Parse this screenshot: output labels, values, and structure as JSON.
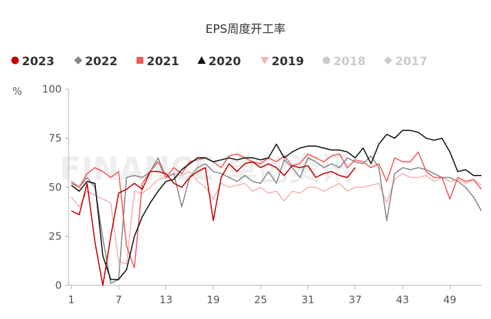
{
  "chart_data": {
    "type": "line",
    "title": "EPS周度开工率",
    "ylabel": "%",
    "ylim": [
      0,
      100
    ],
    "yticks": [
      "0",
      "25",
      "50",
      "75",
      "100"
    ],
    "xlim": [
      1,
      53
    ],
    "xticks": [
      "1",
      "7",
      "13",
      "19",
      "25",
      "31",
      "37",
      "43",
      "49"
    ],
    "grid": false,
    "legend_position": "top",
    "watermark": "FINANCE 卓创资讯",
    "series": [
      {
        "name": "2023",
        "color": "#c00000",
        "marker": "circle",
        "hidden": false,
        "x": [
          1,
          2,
          3,
          4,
          5,
          6,
          7,
          8,
          9,
          10,
          11,
          12,
          13,
          14,
          15,
          16,
          17,
          18,
          19,
          20,
          21,
          22,
          23,
          24,
          25,
          26,
          27,
          28,
          29,
          30,
          31,
          32,
          33,
          34,
          35,
          36,
          37
        ],
        "y": [
          38,
          36,
          52,
          22,
          0,
          25,
          47,
          49,
          52,
          49,
          58,
          58,
          57,
          52,
          50,
          55,
          58,
          60,
          33,
          55,
          62,
          58,
          62,
          63,
          60,
          62,
          60,
          56,
          61,
          60,
          61,
          55,
          57,
          58,
          56,
          55,
          60
        ]
      },
      {
        "name": "2022",
        "color": "#888888",
        "marker": "diamond",
        "hidden": false,
        "x": [
          1,
          2,
          3,
          4,
          5,
          6,
          7,
          8,
          9,
          10,
          11,
          12,
          13,
          14,
          15,
          16,
          17,
          18,
          19,
          20,
          21,
          22,
          23,
          24,
          25,
          26,
          27,
          28,
          29,
          30,
          31,
          32,
          33,
          34,
          35,
          36,
          37,
          38,
          39,
          40,
          41,
          42,
          43,
          44,
          45,
          46,
          47,
          48,
          49,
          50,
          51,
          52,
          53
        ],
        "y": [
          52,
          50,
          55,
          50,
          24,
          1,
          3,
          55,
          56,
          55,
          58,
          65,
          55,
          57,
          40,
          55,
          60,
          62,
          58,
          57,
          55,
          53,
          56,
          53,
          52,
          58,
          52,
          64,
          60,
          55,
          65,
          63,
          60,
          62,
          60,
          65,
          63,
          62,
          66,
          60,
          33,
          57,
          60,
          59,
          60,
          59,
          57,
          55,
          55,
          53,
          50,
          45,
          38
        ]
      },
      {
        "name": "2021",
        "color": "#f25a5a",
        "marker": "square",
        "hidden": false,
        "x": [
          1,
          2,
          3,
          4,
          5,
          6,
          7,
          8,
          9,
          10,
          11,
          12,
          13,
          14,
          15,
          16,
          17,
          18,
          19,
          20,
          21,
          22,
          23,
          24,
          25,
          26,
          27,
          28,
          29,
          30,
          31,
          32,
          33,
          34,
          35,
          36,
          37,
          38,
          39,
          40,
          41,
          42,
          43,
          44,
          45,
          46,
          47,
          48,
          49,
          50,
          51,
          52,
          53
        ],
        "y": [
          53,
          50,
          57,
          60,
          58,
          55,
          58,
          20,
          9,
          52,
          58,
          63,
          55,
          60,
          57,
          63,
          64,
          65,
          63,
          60,
          66,
          67,
          65,
          63,
          62,
          65,
          63,
          66,
          61,
          62,
          67,
          65,
          63,
          66,
          67,
          60,
          64,
          63,
          60,
          62,
          53,
          65,
          63,
          63,
          68,
          58,
          55,
          55,
          44,
          55,
          53,
          54,
          49
        ]
      },
      {
        "name": "2020",
        "color": "#111111",
        "marker": "triangle",
        "hidden": false,
        "x": [
          1,
          2,
          3,
          4,
          5,
          6,
          7,
          8,
          9,
          10,
          11,
          12,
          13,
          14,
          15,
          16,
          17,
          18,
          19,
          20,
          21,
          22,
          23,
          24,
          25,
          26,
          27,
          28,
          29,
          30,
          31,
          32,
          33,
          34,
          35,
          36,
          37,
          38,
          39,
          40,
          41,
          42,
          43,
          44,
          45,
          46,
          47,
          48,
          49,
          50,
          51,
          52,
          53
        ],
        "y": [
          51,
          48,
          53,
          52,
          15,
          3,
          3,
          8,
          25,
          35,
          42,
          48,
          53,
          54,
          59,
          62,
          65,
          65,
          63,
          64,
          65,
          64,
          65,
          65,
          64,
          65,
          72,
          65,
          68,
          70,
          71,
          71,
          70,
          69,
          69,
          68,
          65,
          70,
          62,
          72,
          77,
          75,
          79,
          79,
          78,
          75,
          74,
          75,
          68,
          58,
          59,
          56,
          56
        ]
      },
      {
        "name": "2019",
        "color": "#f7b3b3",
        "marker": "triangle-down",
        "hidden": false,
        "x": [
          1,
          2,
          3,
          4,
          5,
          6,
          7,
          8,
          9,
          10,
          11,
          12,
          13,
          14,
          15,
          16,
          17,
          18,
          19,
          20,
          21,
          22,
          23,
          24,
          25,
          26,
          27,
          28,
          29,
          30,
          31,
          32,
          33,
          34,
          35,
          36,
          37,
          38,
          39,
          40,
          41,
          42,
          43,
          44,
          45,
          46,
          47,
          48,
          49,
          50,
          51,
          52,
          53
        ],
        "y": [
          45,
          40,
          48,
          46,
          44,
          42,
          12,
          11,
          48,
          47,
          50,
          54,
          55,
          57,
          56,
          58,
          53,
          50,
          44,
          52,
          50,
          51,
          52,
          48,
          50,
          47,
          48,
          43,
          48,
          47,
          50,
          50,
          48,
          50,
          52,
          48,
          50,
          50,
          51,
          52,
          42,
          54,
          57,
          55,
          55,
          56,
          53,
          55,
          53,
          54,
          52,
          54,
          51
        ]
      },
      {
        "name": "2018",
        "color": "#cccccc",
        "marker": "circle",
        "hidden": true,
        "x": [],
        "y": []
      },
      {
        "name": "2017",
        "color": "#cccccc",
        "marker": "diamond",
        "hidden": true,
        "x": [],
        "y": []
      }
    ]
  }
}
